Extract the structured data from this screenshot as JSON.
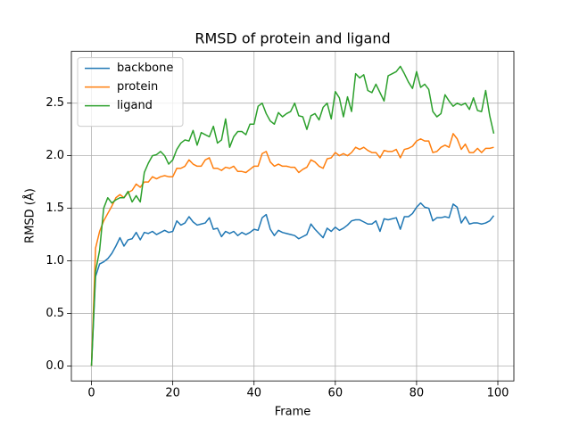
{
  "chart_data": {
    "type": "line",
    "title": "RMSD of protein and ligand",
    "x_label": "Frame",
    "y_label": "RMSD (Å)",
    "x": [
      0,
      1,
      2,
      3,
      4,
      5,
      6,
      7,
      8,
      9,
      10,
      11,
      12,
      13,
      14,
      15,
      16,
      17,
      18,
      19,
      20,
      21,
      22,
      23,
      24,
      25,
      26,
      27,
      28,
      29,
      30,
      31,
      32,
      33,
      34,
      35,
      36,
      37,
      38,
      39,
      40,
      41,
      42,
      43,
      44,
      45,
      46,
      47,
      48,
      49,
      50,
      51,
      52,
      53,
      54,
      55,
      56,
      57,
      58,
      59,
      60,
      61,
      62,
      63,
      64,
      65,
      66,
      67,
      68,
      69,
      70,
      71,
      72,
      73,
      74,
      75,
      76,
      77,
      78,
      79,
      80,
      81,
      82,
      83,
      84,
      85,
      86,
      87,
      88,
      89,
      90,
      91,
      92,
      93,
      94,
      95,
      96,
      97,
      98,
      99
    ],
    "series": [
      {
        "name": "backbone",
        "color": "#1f77b4",
        "values": [
          0,
          0.85,
          0.97,
          0.99,
          1.02,
          1.07,
          1.14,
          1.22,
          1.14,
          1.2,
          1.21,
          1.27,
          1.2,
          1.27,
          1.26,
          1.28,
          1.25,
          1.27,
          1.29,
          1.27,
          1.28,
          1.38,
          1.34,
          1.36,
          1.42,
          1.37,
          1.34,
          1.35,
          1.36,
          1.41,
          1.3,
          1.31,
          1.23,
          1.28,
          1.26,
          1.28,
          1.24,
          1.27,
          1.25,
          1.27,
          1.3,
          1.29,
          1.41,
          1.44,
          1.3,
          1.24,
          1.29,
          1.27,
          1.26,
          1.25,
          1.24,
          1.21,
          1.23,
          1.25,
          1.35,
          1.3,
          1.26,
          1.22,
          1.31,
          1.28,
          1.32,
          1.29,
          1.31,
          1.34,
          1.38,
          1.39,
          1.39,
          1.37,
          1.35,
          1.35,
          1.38,
          1.28,
          1.4,
          1.39,
          1.4,
          1.41,
          1.3,
          1.42,
          1.42,
          1.45,
          1.51,
          1.55,
          1.51,
          1.5,
          1.38,
          1.41,
          1.41,
          1.42,
          1.41,
          1.54,
          1.51,
          1.36,
          1.42,
          1.35,
          1.36,
          1.36,
          1.35,
          1.36,
          1.38,
          1.43
        ]
      },
      {
        "name": "protein",
        "color": "#ff7f0e",
        "values": [
          0,
          1.12,
          1.28,
          1.38,
          1.45,
          1.52,
          1.6,
          1.63,
          1.6,
          1.65,
          1.67,
          1.73,
          1.7,
          1.75,
          1.75,
          1.8,
          1.78,
          1.8,
          1.81,
          1.8,
          1.8,
          1.88,
          1.88,
          1.9,
          1.96,
          1.92,
          1.9,
          1.9,
          1.96,
          1.98,
          1.88,
          1.88,
          1.86,
          1.89,
          1.88,
          1.9,
          1.85,
          1.85,
          1.84,
          1.87,
          1.9,
          1.9,
          2.02,
          2.04,
          1.94,
          1.9,
          1.92,
          1.9,
          1.9,
          1.89,
          1.89,
          1.84,
          1.87,
          1.89,
          1.96,
          1.94,
          1.9,
          1.88,
          1.97,
          1.98,
          2.03,
          2.0,
          2.02,
          2.0,
          2.03,
          2.08,
          2.06,
          2.08,
          2.05,
          2.03,
          2.03,
          1.98,
          2.05,
          2.04,
          2.04,
          2.06,
          1.98,
          2.06,
          2.07,
          2.09,
          2.14,
          2.16,
          2.14,
          2.14,
          2.03,
          2.04,
          2.08,
          2.1,
          2.08,
          2.21,
          2.16,
          2.06,
          2.11,
          2.03,
          2.03,
          2.07,
          2.03,
          2.07,
          2.07,
          2.08
        ]
      },
      {
        "name": "ligand",
        "color": "#2ca02c",
        "values": [
          0,
          0.9,
          1.1,
          1.5,
          1.6,
          1.55,
          1.58,
          1.6,
          1.6,
          1.66,
          1.56,
          1.62,
          1.56,
          1.84,
          1.93,
          2.0,
          2.01,
          2.04,
          2.0,
          1.92,
          1.96,
          2.06,
          2.12,
          2.15,
          2.14,
          2.24,
          2.1,
          2.22,
          2.2,
          2.18,
          2.28,
          2.12,
          2.15,
          2.35,
          2.08,
          2.18,
          2.23,
          2.23,
          2.2,
          2.3,
          2.3,
          2.47,
          2.5,
          2.4,
          2.33,
          2.3,
          2.41,
          2.37,
          2.4,
          2.42,
          2.5,
          2.38,
          2.37,
          2.25,
          2.38,
          2.4,
          2.34,
          2.46,
          2.5,
          2.35,
          2.61,
          2.55,
          2.37,
          2.56,
          2.42,
          2.78,
          2.74,
          2.77,
          2.62,
          2.6,
          2.68,
          2.6,
          2.52,
          2.76,
          2.78,
          2.8,
          2.85,
          2.78,
          2.7,
          2.64,
          2.8,
          2.65,
          2.68,
          2.63,
          2.42,
          2.37,
          2.4,
          2.58,
          2.52,
          2.47,
          2.5,
          2.48,
          2.5,
          2.44,
          2.55,
          2.43,
          2.42,
          2.62,
          2.38,
          2.21
        ]
      }
    ],
    "xlim": [
      -4.95,
      103.95
    ],
    "ylim": [
      -0.1425,
      2.9925
    ],
    "xticks": [
      0,
      20,
      40,
      60,
      80,
      100
    ],
    "yticks": [
      {
        "value": 0,
        "label": "0.0"
      },
      {
        "value": 0.5,
        "label": "0.5"
      },
      {
        "value": 1,
        "label": "1.0"
      },
      {
        "value": 1.5,
        "label": "1.5"
      },
      {
        "value": 2,
        "label": "2.0"
      },
      {
        "value": 2.5,
        "label": "2.5"
      }
    ],
    "grid": true,
    "legend": "upper-left"
  }
}
